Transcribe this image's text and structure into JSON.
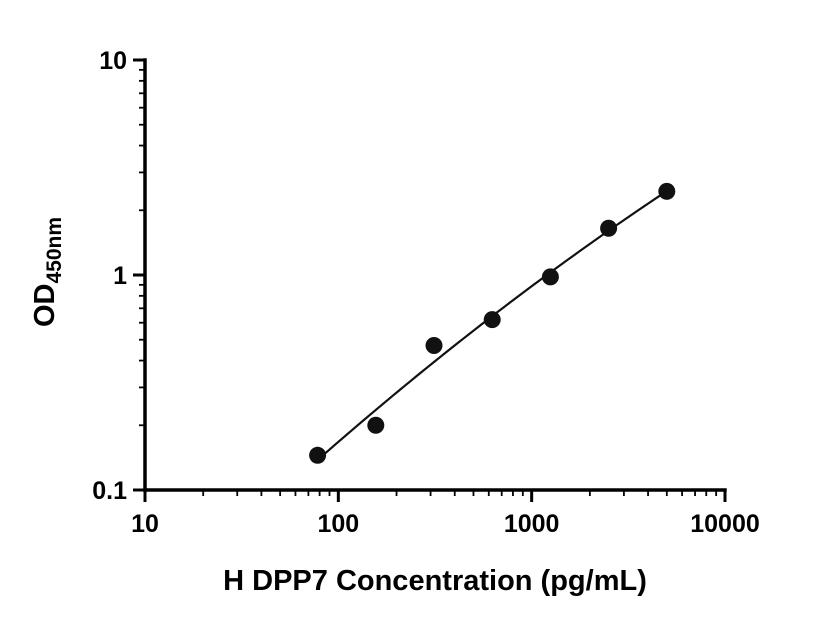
{
  "page": {
    "background": "#ffffff"
  },
  "chart_data": {
    "type": "scatter",
    "title": "",
    "xlabel": "H DPP7 Concentration (pg/mL)",
    "ylabel_main": "OD",
    "ylabel_sub": "450nm",
    "x_scale": "log",
    "y_scale": "log",
    "xlim": [
      10,
      10000
    ],
    "ylim": [
      0.1,
      10
    ],
    "x_ticks": [
      10,
      100,
      1000,
      10000
    ],
    "x_tick_labels": [
      "10",
      "100",
      "1000",
      "10000"
    ],
    "y_ticks": [
      0.1,
      1,
      10
    ],
    "y_tick_labels": [
      "0.1",
      "1",
      "10"
    ],
    "points": {
      "x": [
        78.125,
        156.25,
        312.5,
        625,
        1250,
        2500,
        5000
      ],
      "y": [
        0.145,
        0.2,
        0.47,
        0.62,
        0.98,
        1.65,
        2.45
      ]
    },
    "fit_line": true,
    "legend": "none",
    "grid": false,
    "marker_color": "#111111",
    "line_color": "#111111"
  }
}
